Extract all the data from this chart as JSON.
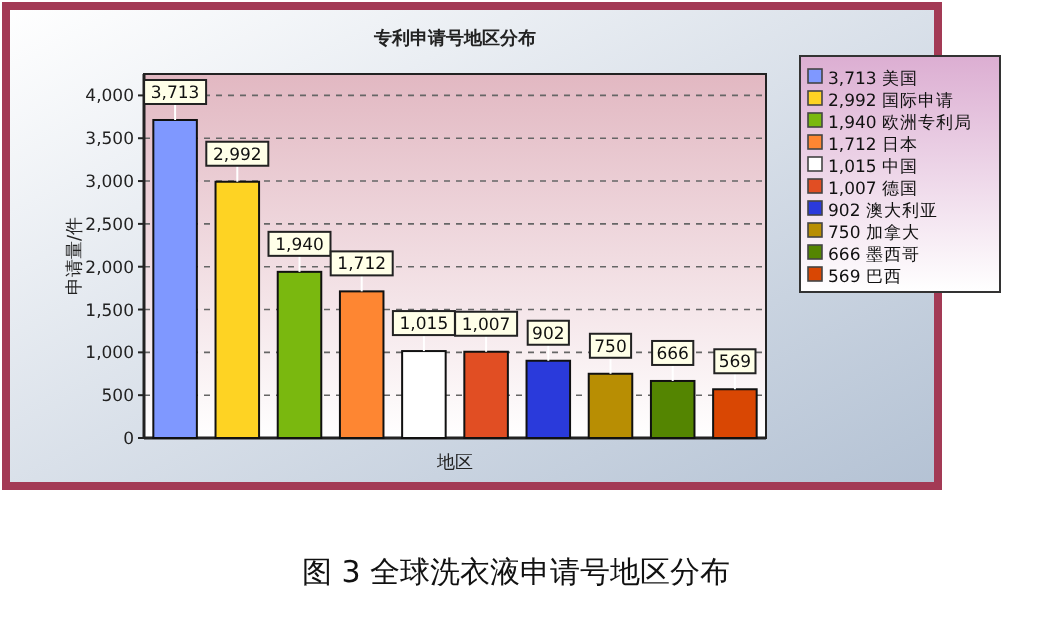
{
  "chart_data": {
    "type": "bar",
    "title": "专利申请号地区分布",
    "xlabel": "地区",
    "ylabel": "申请量/件",
    "annotations": [
      "图 3 全球洗衣液申请号地区分布"
    ],
    "categories": [
      null,
      null,
      null,
      null,
      null,
      null,
      null,
      null,
      null,
      null
    ],
    "series": [
      {
        "name": "3,713 美国",
        "color": "#7f98ff",
        "values": [
          3713,
          null,
          null,
          null,
          null,
          null,
          null,
          null,
          null,
          null
        ],
        "value_labels": [
          "3,713",
          null,
          null,
          null,
          null,
          null,
          null,
          null,
          null,
          null
        ]
      },
      {
        "name": "2,992 国际申请",
        "color": "#fed323",
        "values": [
          null,
          2992,
          null,
          null,
          null,
          null,
          null,
          null,
          null,
          null
        ],
        "value_labels": [
          null,
          "2,992",
          null,
          null,
          null,
          null,
          null,
          null,
          null,
          null
        ]
      },
      {
        "name": "1,940 欧洲专利局",
        "color": "#7ab80f",
        "values": [
          null,
          null,
          1940,
          null,
          null,
          null,
          null,
          null,
          null,
          null
        ],
        "value_labels": [
          null,
          null,
          "1,940",
          null,
          null,
          null,
          null,
          null,
          null,
          null
        ]
      },
      {
        "name": "1,712 日本",
        "color": "#fe8632",
        "values": [
          null,
          null,
          null,
          1712,
          null,
          null,
          null,
          null,
          null,
          null
        ],
        "value_labels": [
          null,
          null,
          null,
          "1,712",
          null,
          null,
          null,
          null,
          null,
          null
        ]
      },
      {
        "name": "1,015 中国",
        "color": "#ffffff",
        "values": [
          null,
          null,
          null,
          null,
          1015,
          null,
          null,
          null,
          null,
          null
        ],
        "value_labels": [
          null,
          null,
          null,
          null,
          "1,015",
          null,
          null,
          null,
          null,
          null
        ]
      },
      {
        "name": "1,007 德国",
        "color": "#e14e23",
        "values": [
          null,
          null,
          null,
          null,
          null,
          1007,
          null,
          null,
          null,
          null
        ],
        "value_labels": [
          null,
          null,
          null,
          null,
          null,
          "1,007",
          null,
          null,
          null,
          null
        ]
      },
      {
        "name": "902 澳大利亚",
        "color": "#2a3adb",
        "values": [
          null,
          null,
          null,
          null,
          null,
          null,
          902,
          null,
          null,
          null
        ],
        "value_labels": [
          null,
          null,
          null,
          null,
          null,
          null,
          "902",
          null,
          null,
          null
        ]
      },
      {
        "name": "750 加拿大",
        "color": "#b88e03",
        "values": [
          null,
          null,
          null,
          null,
          null,
          null,
          null,
          750,
          null,
          null
        ],
        "value_labels": [
          null,
          null,
          null,
          null,
          null,
          null,
          null,
          "750",
          null,
          null
        ]
      },
      {
        "name": "666 墨西哥",
        "color": "#548501",
        "values": [
          null,
          null,
          null,
          null,
          null,
          null,
          null,
          null,
          666,
          null
        ],
        "value_labels": [
          null,
          null,
          null,
          null,
          null,
          null,
          null,
          null,
          "666",
          null
        ]
      },
      {
        "name": "569 巴西",
        "color": "#d94703",
        "values": [
          null,
          null,
          null,
          null,
          null,
          null,
          null,
          null,
          null,
          569
        ],
        "value_labels": [
          null,
          null,
          null,
          null,
          null,
          null,
          null,
          null,
          null,
          "569"
        ]
      }
    ],
    "ylim": [
      0,
      4250
    ],
    "yticks": [
      0,
      500,
      {
        "value": 1000,
        "label": "1,000"
      },
      {
        "value": 1500,
        "label": "1,500"
      },
      {
        "value": 2000,
        "label": "2,000"
      },
      {
        "value": 2500,
        "label": "2,500"
      },
      {
        "value": 3000,
        "label": "3,000"
      },
      {
        "value": 3500,
        "label": "3,500"
      },
      {
        "value": 4000,
        "label": "4,000"
      }
    ],
    "grid": "y",
    "legend": "right",
    "tick_labels": "y"
  }
}
